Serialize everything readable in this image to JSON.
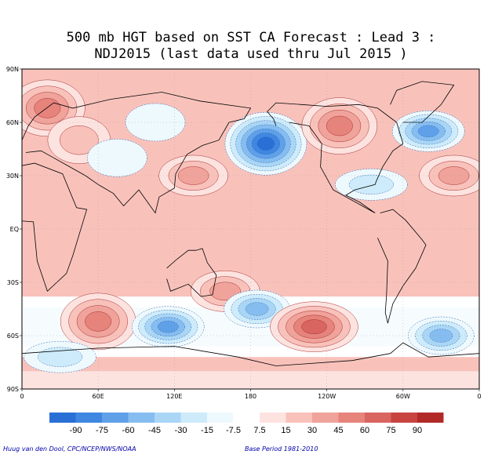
{
  "title": {
    "line1": "500 mb HGT based on SST CA Forecast : Lead 3 :",
    "line2": "NDJ2015 (last data used thru Jul 2015 )"
  },
  "axes": {
    "y_labels": [
      "90N",
      "60N",
      "30N",
      "EQ",
      "30S",
      "60S",
      "90S"
    ],
    "x_labels": [
      "0",
      "60E",
      "120E",
      "180",
      "120W",
      "60W",
      "0"
    ]
  },
  "colorbar": {
    "labels": [
      "-90",
      "-75",
      "-60",
      "-45",
      "-30",
      "-15",
      "-7.5",
      "7.5",
      "15",
      "30",
      "45",
      "60",
      "75",
      "90"
    ],
    "colors": [
      "#2a6fd6",
      "#3f87e0",
      "#5fa0e8",
      "#86bdf0",
      "#aad6f6",
      "#cdebfa",
      "#eef9fd",
      "#ffffff",
      "#fde3e0",
      "#f8c2bb",
      "#f0a39b",
      "#e6847c",
      "#d96560",
      "#c84440",
      "#b22a28"
    ]
  },
  "credits": {
    "left": "Huug van den Dool, CPC/NCEP/NWS/NOAA",
    "right": "Base Period 1981-2010"
  },
  "map": {
    "background_color": "#f8c2bb",
    "anomaly_centers": [
      {
        "lon": 20,
        "lat": 68,
        "value": 45
      },
      {
        "lon": 45,
        "lat": 50,
        "value": 15
      },
      {
        "lon": 75,
        "lat": 40,
        "value": -7.5
      },
      {
        "lon": 105,
        "lat": 60,
        "value": -7.5
      },
      {
        "lon": 135,
        "lat": 30,
        "value": 30
      },
      {
        "lon": 192,
        "lat": 48,
        "value": -90
      },
      {
        "lon": 250,
        "lat": 58,
        "value": 45
      },
      {
        "lon": 275,
        "lat": 25,
        "value": -15
      },
      {
        "lon": 320,
        "lat": 55,
        "value": -60
      },
      {
        "lon": 340,
        "lat": 30,
        "value": 30
      },
      {
        "lon": 60,
        "lat": -52,
        "value": 45
      },
      {
        "lon": 115,
        "lat": -55,
        "value": -60
      },
      {
        "lon": 160,
        "lat": -35,
        "value": 30
      },
      {
        "lon": 185,
        "lat": -45,
        "value": -45
      },
      {
        "lon": 230,
        "lat": -55,
        "value": 60
      },
      {
        "lon": 330,
        "lat": -60,
        "value": -45
      },
      {
        "lon": 30,
        "lat": -72,
        "value": -15
      }
    ]
  }
}
